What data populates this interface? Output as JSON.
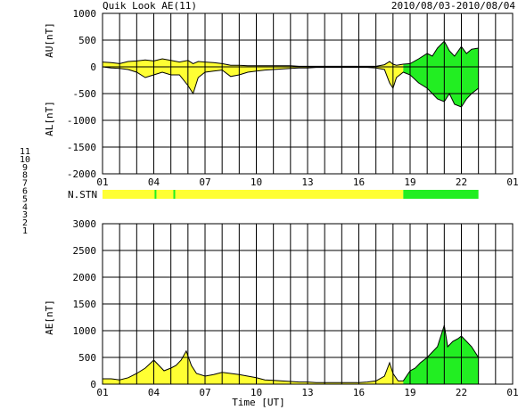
{
  "header": {
    "title": "Quik Look AE(11)",
    "date_range": "2010/08/03-2010/08/04"
  },
  "station_legend": {
    "entries": [
      {
        "label": "11",
        "color": "#33cccc"
      },
      {
        "label": "10",
        "color": "#ff00ff"
      },
      {
        "label": "9",
        "color": "#0000cc"
      },
      {
        "label": "8",
        "color": "#ffcc00"
      },
      {
        "label": "7",
        "color": "#99cc33"
      },
      {
        "label": "6",
        "color": "#ff0000"
      },
      {
        "label": "5",
        "color": "#ffaaaa"
      },
      {
        "label": "4",
        "color": "#aaaaaa"
      },
      {
        "label": "3",
        "color": "#22aaaa"
      },
      {
        "label": "2",
        "color": "#cc00cc"
      },
      {
        "label": "1",
        "color": "#3333cc"
      }
    ]
  },
  "colors": {
    "yellow": "#ffff33",
    "green": "#22ee22",
    "grid": "#000000"
  },
  "chart_data": [
    {
      "type": "area",
      "panel": "AU/AL",
      "ylabel_top": "AU[nT]",
      "ylabel_bottom": "AL[nT]",
      "ylim": [
        -2000,
        1000
      ],
      "yticks": [
        1000,
        500,
        0,
        -500,
        -1000,
        -1500,
        -2000
      ],
      "xlim": [
        1,
        25
      ],
      "xticks": [
        "01",
        "04",
        "07",
        "10",
        "13",
        "16",
        "19",
        "22",
        "01"
      ],
      "xtick_values": [
        1,
        4,
        7,
        10,
        13,
        16,
        19,
        22,
        25
      ],
      "green_from_hour": 18.6,
      "series": [
        {
          "x": [
            1,
            1.5,
            2,
            2.5,
            3,
            3.5,
            4,
            4.5,
            5,
            5.5,
            6,
            6.3,
            6.6,
            7,
            7.5,
            8,
            8.5,
            9,
            9.5,
            10,
            10.5,
            11,
            11.5,
            12,
            12.5,
            13,
            13.5,
            14,
            14.5,
            15,
            15.5,
            16,
            16.5,
            17,
            17.5,
            17.8,
            18,
            18.2,
            18.6,
            19,
            19.5,
            20,
            20.3,
            20.6,
            21,
            21.3,
            21.6,
            22,
            22.3,
            22.6,
            23
          ],
          "values": [
            90,
            80,
            60,
            100,
            110,
            130,
            110,
            150,
            120,
            90,
            120,
            60,
            100,
            90,
            80,
            60,
            30,
            30,
            20,
            20,
            20,
            20,
            20,
            20,
            10,
            10,
            10,
            10,
            10,
            10,
            10,
            10,
            10,
            10,
            40,
            100,
            50,
            30,
            50,
            60,
            150,
            250,
            200,
            350,
            480,
            300,
            200,
            380,
            250,
            330,
            350
          ]
        },
        {
          "x": [
            1,
            1.5,
            2,
            2.5,
            3,
            3.5,
            4,
            4.5,
            5,
            5.5,
            6,
            6.3,
            6.6,
            7,
            7.5,
            8,
            8.5,
            9,
            9.5,
            10,
            10.5,
            11,
            11.5,
            12,
            12.5,
            13,
            13.5,
            14,
            14.5,
            15,
            15.5,
            16,
            16.5,
            17,
            17.5,
            17.8,
            18,
            18.2,
            18.6,
            19,
            19.5,
            20,
            20.3,
            20.6,
            21,
            21.3,
            21.6,
            22,
            22.3,
            22.6,
            23
          ],
          "values": [
            0,
            -20,
            -30,
            -50,
            -100,
            -200,
            -150,
            -100,
            -150,
            -150,
            -350,
            -500,
            -200,
            -100,
            -80,
            -60,
            -180,
            -150,
            -100,
            -80,
            -60,
            -50,
            -40,
            -30,
            -20,
            -20,
            -10,
            -10,
            -10,
            -10,
            -10,
            -10,
            -10,
            -20,
            -50,
            -300,
            -400,
            -200,
            -100,
            -150,
            -300,
            -400,
            -500,
            -600,
            -650,
            -500,
            -700,
            -750,
            -600,
            -500,
            -400
          ]
        }
      ]
    },
    {
      "type": "area",
      "panel": "N.STN",
      "label": "N.STN",
      "segments": [
        {
          "from_hour": 1,
          "to_hour": 18.6,
          "color_key": "yellow"
        },
        {
          "from_hour": 18.6,
          "to_hour": 23,
          "color_key": "green"
        }
      ],
      "marks": [
        4.1,
        5.2
      ]
    },
    {
      "type": "area",
      "panel": "AE",
      "ylabel": "AE[nT]",
      "xlabel": "Time [UT]",
      "ylim": [
        0,
        3000
      ],
      "yticks": [
        3000,
        2500,
        2000,
        1500,
        1000,
        500,
        0
      ],
      "xlim": [
        1,
        25
      ],
      "xticks": [
        "01",
        "04",
        "07",
        "10",
        "13",
        "16",
        "19",
        "22",
        "01"
      ],
      "xtick_values": [
        1,
        4,
        7,
        10,
        13,
        16,
        19,
        22,
        25
      ],
      "green_from_hour": 18.6,
      "series": [
        {
          "x": [
            1,
            1.5,
            2,
            2.5,
            3,
            3.5,
            4,
            4.3,
            4.6,
            5,
            5.3,
            5.6,
            5.9,
            6.2,
            6.5,
            7,
            7.5,
            8,
            8.5,
            9,
            9.5,
            10,
            10.5,
            11,
            11.5,
            12,
            12.5,
            13,
            13.5,
            14,
            14.5,
            15,
            15.5,
            16,
            16.5,
            17,
            17.5,
            17.8,
            18,
            18.3,
            18.6,
            19,
            19.3,
            19.6,
            20,
            20.3,
            20.6,
            21,
            21.2,
            21.5,
            21.8,
            22,
            22.3,
            22.6,
            23
          ],
          "values": [
            100,
            100,
            80,
            120,
            200,
            300,
            450,
            350,
            250,
            300,
            350,
            450,
            620,
            350,
            200,
            150,
            180,
            220,
            200,
            180,
            150,
            120,
            80,
            70,
            60,
            50,
            40,
            40,
            30,
            30,
            30,
            30,
            30,
            30,
            40,
            60,
            150,
            400,
            200,
            60,
            60,
            250,
            300,
            400,
            500,
            600,
            700,
            1100,
            700,
            800,
            850,
            900,
            800,
            700,
            500
          ]
        }
      ]
    }
  ]
}
